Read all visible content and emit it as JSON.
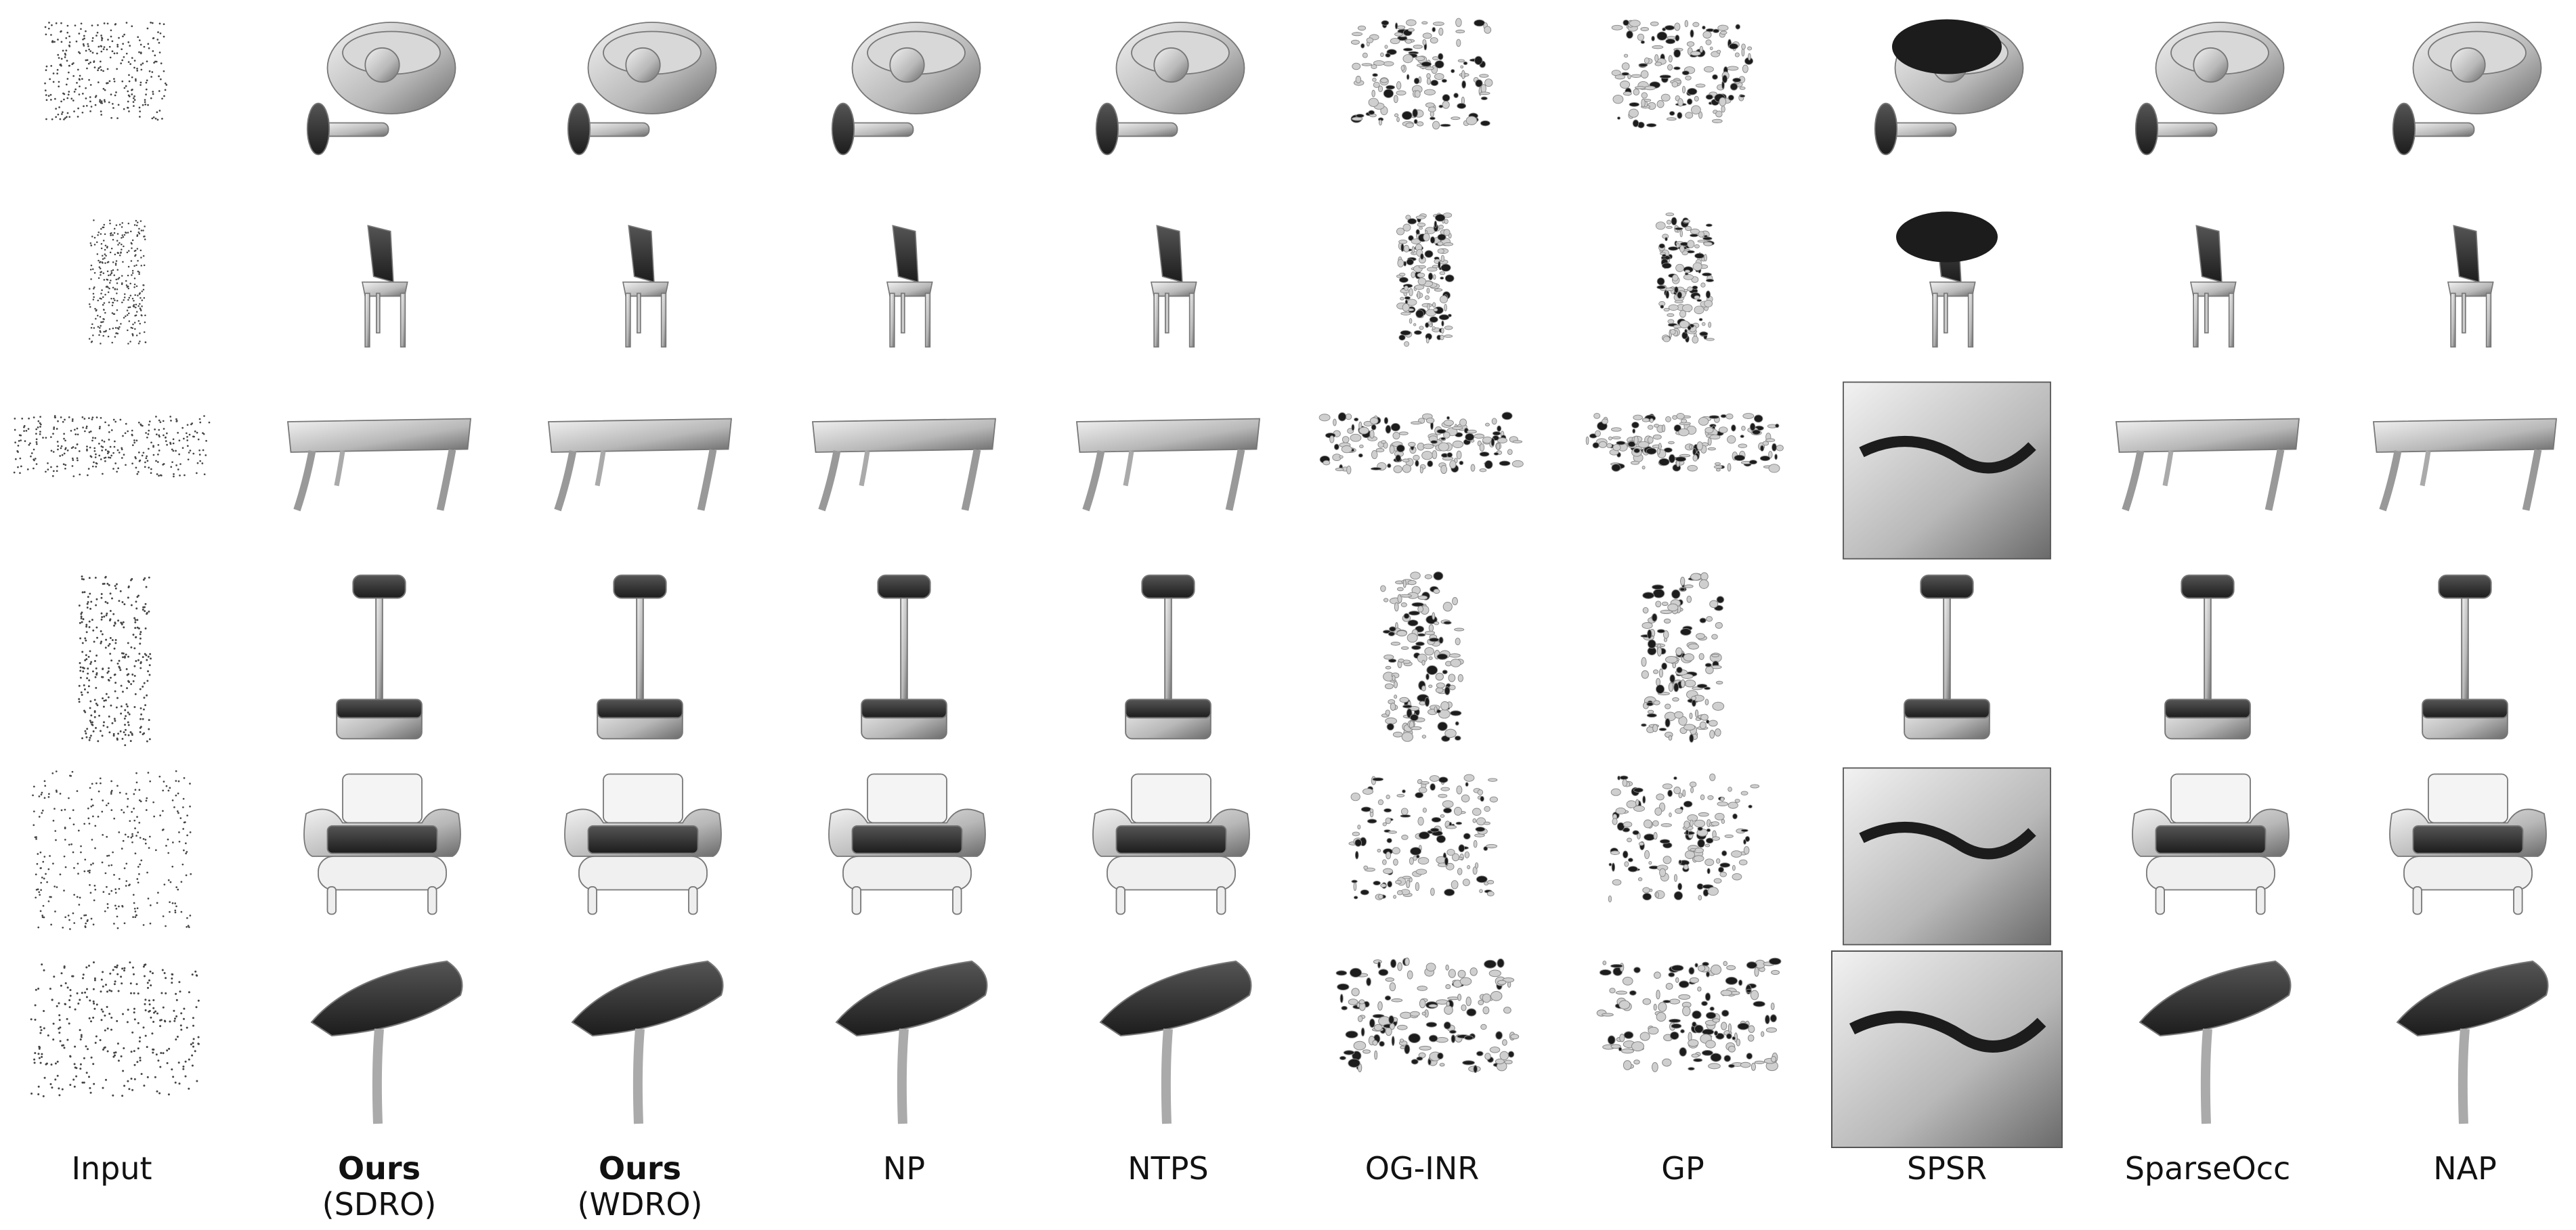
{
  "columns": [
    {
      "bold": "",
      "text": "Input",
      "sub": ""
    },
    {
      "bold": "Ours",
      "text": "",
      "sub": "(SDRO)"
    },
    {
      "bold": "Ours",
      "text": "",
      "sub": "(WDRO)"
    },
    {
      "bold": "",
      "text": "NP",
      "sub": ""
    },
    {
      "bold": "",
      "text": "NTPS",
      "sub": ""
    },
    {
      "bold": "",
      "text": "OG-INR",
      "sub": ""
    },
    {
      "bold": "",
      "text": "GP",
      "sub": ""
    },
    {
      "bold": "",
      "text": "SPSR",
      "sub": ""
    },
    {
      "bold": "",
      "text": "SparseOcc",
      "sub": ""
    },
    {
      "bold": "",
      "text": "NAP",
      "sub": ""
    }
  ],
  "rows": [
    "lamp",
    "chair",
    "table",
    "stool-lamp",
    "armchair",
    "desk-lamp"
  ],
  "colors": {
    "surface_light": "#f2f2f2",
    "surface_mid": "#b8b8b8",
    "surface_dark": "#1c1c1c",
    "points": "#444444"
  }
}
